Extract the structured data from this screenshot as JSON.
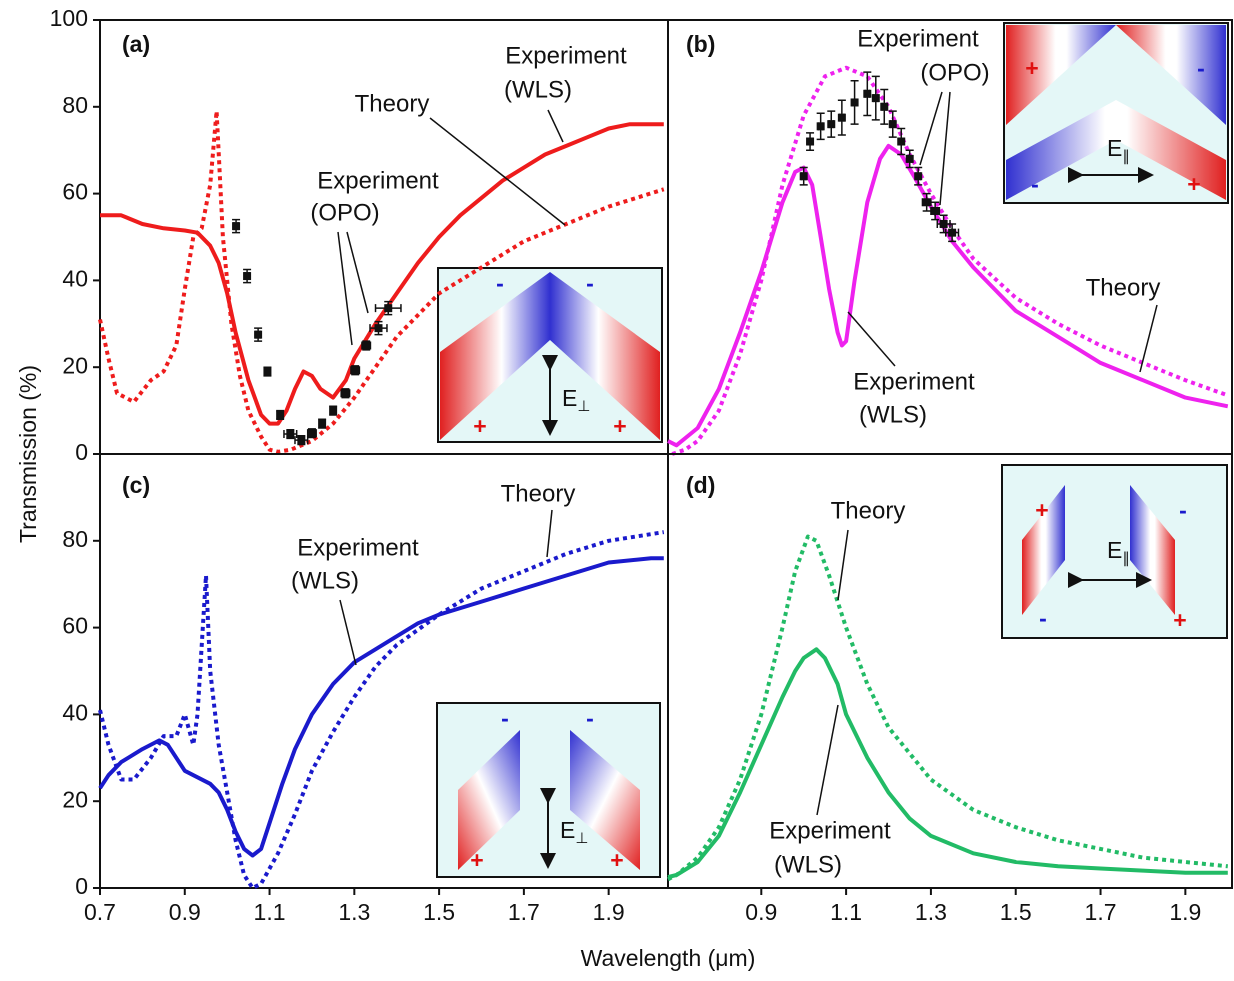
{
  "ylabel": "Transmission (%)",
  "xlabel": "Wavelength (μm)",
  "chart_data": [
    {
      "type": "line",
      "panel_label": "(a)",
      "xlim": [
        0.7,
        2.04
      ],
      "ylim": [
        0,
        100
      ],
      "yticks": [
        0,
        20,
        40,
        60,
        80,
        100
      ],
      "series": [
        {
          "color": "#ee1c1c",
          "dashed": false,
          "x": [
            0.7,
            0.75,
            0.8,
            0.85,
            0.9,
            0.93,
            0.96,
            0.98,
            1.0,
            1.02,
            1.05,
            1.08,
            1.1,
            1.12,
            1.14,
            1.16,
            1.18,
            1.2,
            1.22,
            1.25,
            1.28,
            1.3,
            1.35,
            1.4,
            1.45,
            1.5,
            1.55,
            1.6,
            1.65,
            1.7,
            1.75,
            1.8,
            1.85,
            1.9,
            1.95,
            2.0,
            2.03
          ],
          "values": [
            55,
            55,
            53,
            52,
            51.5,
            51,
            48,
            44,
            37,
            28,
            17,
            9,
            7,
            7,
            10,
            15,
            19,
            18,
            15,
            13,
            17,
            22,
            30,
            37,
            44,
            50,
            55,
            59,
            63,
            66,
            69,
            71,
            73,
            75,
            76,
            76,
            76
          ]
        },
        {
          "color": "#ee1c1c",
          "dashed": true,
          "x": [
            0.7,
            0.72,
            0.74,
            0.78,
            0.82,
            0.85,
            0.88,
            0.9,
            0.92,
            0.94,
            0.96,
            0.975,
            0.99,
            1.01,
            1.03,
            1.05,
            1.08,
            1.1,
            1.12,
            1.15,
            1.2,
            1.25,
            1.3,
            1.35,
            1.4,
            1.45,
            1.5,
            1.6,
            1.7,
            1.8,
            1.9,
            2.03
          ],
          "values": [
            31,
            22,
            14,
            12,
            17,
            19,
            25,
            38,
            50,
            52,
            62,
            79,
            50,
            30,
            18,
            10,
            4,
            1,
            0.5,
            1,
            3,
            7,
            13,
            20,
            27,
            32,
            37,
            43,
            49,
            53,
            57,
            61
          ]
        },
        {
          "type": "scatter",
          "color": "#111111",
          "x": [
            1.021,
            1.047,
            1.073,
            1.095,
            1.125,
            1.149,
            1.175,
            1.2,
            1.224,
            1.25,
            1.279,
            1.302,
            1.328,
            1.357,
            1.38
          ],
          "values": [
            52.5,
            41,
            27.5,
            19,
            9,
            4.6,
            3.2,
            4.8,
            7,
            10,
            14,
            19.3,
            25,
            29,
            33.6
          ],
          "xerr": [
            0.005,
            0.005,
            0.005,
            0.005,
            0.005,
            0.015,
            0.015,
            0.01,
            0.005,
            0.005,
            0.01,
            0.01,
            0.01,
            0.02,
            0.03
          ],
          "yerr": [
            1.5,
            1.5,
            1.5,
            1,
            1,
            1,
            1,
            1,
            1,
            1,
            1,
            1,
            1,
            1.5,
            1.5
          ]
        }
      ],
      "annotations": [
        [
          "Experiment",
          "(WLS)"
        ],
        [
          "Theory"
        ],
        [
          "Experiment",
          "(OPO)"
        ]
      ],
      "inset": {
        "charges": [
          "-",
          "-",
          "+",
          "+"
        ],
        "field": "E",
        "field_sub": "⊥"
      }
    },
    {
      "type": "line",
      "panel_label": "(b)",
      "xlim": [
        0.68,
        2.01
      ],
      "ylim": [
        0,
        100
      ],
      "series": [
        {
          "color": "#ee22ee",
          "dashed": false,
          "x": [
            0.68,
            0.7,
            0.75,
            0.8,
            0.85,
            0.9,
            0.95,
            0.98,
            1.0,
            1.02,
            1.04,
            1.06,
            1.08,
            1.09,
            1.1,
            1.12,
            1.15,
            1.18,
            1.2,
            1.23,
            1.26,
            1.3,
            1.35,
            1.4,
            1.45,
            1.5,
            1.55,
            1.6,
            1.65,
            1.7,
            1.8,
            1.9,
            2.0
          ],
          "values": [
            3,
            2,
            6,
            15,
            28,
            42,
            58,
            65,
            66,
            62,
            50,
            38,
            28,
            25,
            26,
            40,
            58,
            68,
            71,
            69,
            64,
            57,
            49,
            43,
            38,
            33,
            30,
            27,
            24,
            21,
            17,
            13,
            11
          ]
        },
        {
          "color": "#ee22ee",
          "dashed": true,
          "x": [
            0.69,
            0.72,
            0.75,
            0.8,
            0.85,
            0.9,
            0.95,
            1.0,
            1.05,
            1.1,
            1.15,
            1.2,
            1.25,
            1.3,
            1.35,
            1.4,
            1.5,
            1.6,
            1.7,
            1.8,
            1.9,
            2.0
          ],
          "values": [
            0,
            1,
            3,
            10,
            23,
            40,
            62,
            78,
            87,
            89,
            87,
            80,
            69,
            60,
            52,
            45,
            36,
            30,
            25,
            21,
            17,
            13.5
          ]
        },
        {
          "type": "scatter",
          "color": "#111111",
          "x": [
            1.0,
            1.015,
            1.04,
            1.065,
            1.09,
            1.12,
            1.15,
            1.17,
            1.19,
            1.21,
            1.23,
            1.25,
            1.27,
            1.29,
            1.31,
            1.33,
            1.35
          ],
          "values": [
            64,
            72,
            75.5,
            76,
            77.5,
            81,
            83,
            82,
            80,
            76,
            72,
            68,
            64,
            58,
            56,
            53,
            51
          ],
          "xerr": [
            0.005,
            0.005,
            0.005,
            0.005,
            0.005,
            0.005,
            0.005,
            0.005,
            0.005,
            0.005,
            0.005,
            0.005,
            0.005,
            0.01,
            0.01,
            0.015,
            0.015
          ],
          "yerr": [
            2,
            2,
            3,
            3,
            4,
            5,
            5,
            5,
            4,
            3,
            3,
            2,
            2,
            2,
            2,
            2,
            2
          ]
        }
      ],
      "annotations": [
        [
          "Experiment",
          "(OPO)"
        ],
        [
          "Theory"
        ],
        [
          "Experiment",
          "(WLS)"
        ]
      ],
      "inset": {
        "charges": [
          "+",
          "-",
          "-",
          "+"
        ],
        "field": "E",
        "field_sub": "∥"
      }
    },
    {
      "type": "line",
      "panel_label": "(c)",
      "xlim": [
        0.7,
        2.04
      ],
      "ylim": [
        0,
        100
      ],
      "yticks": [
        0,
        20,
        40,
        60,
        80
      ],
      "xticks": [
        0.7,
        0.9,
        1.1,
        1.3,
        1.5,
        1.7,
        1.9
      ],
      "series": [
        {
          "color": "#1a1acc",
          "dashed": false,
          "x": [
            0.7,
            0.72,
            0.75,
            0.8,
            0.84,
            0.86,
            0.88,
            0.9,
            0.93,
            0.96,
            0.98,
            1.0,
            1.02,
            1.04,
            1.06,
            1.08,
            1.1,
            1.13,
            1.16,
            1.2,
            1.25,
            1.3,
            1.35,
            1.4,
            1.45,
            1.5,
            1.6,
            1.7,
            1.8,
            1.9,
            2.0,
            2.03
          ],
          "values": [
            23,
            26,
            29,
            32,
            34,
            33,
            30,
            27,
            25.5,
            24,
            22,
            18,
            13,
            9,
            7.5,
            9,
            15,
            24,
            32,
            40,
            47,
            52,
            55,
            58,
            61,
            63,
            66,
            69,
            72,
            75,
            76,
            76
          ]
        },
        {
          "color": "#1a1acc",
          "dashed": true,
          "x": [
            0.7,
            0.72,
            0.75,
            0.78,
            0.82,
            0.85,
            0.88,
            0.9,
            0.92,
            0.93,
            0.95,
            0.96,
            0.98,
            1.0,
            1.02,
            1.04,
            1.06,
            1.08,
            1.12,
            1.16,
            1.2,
            1.25,
            1.3,
            1.35,
            1.4,
            1.5,
            1.6,
            1.7,
            1.8,
            1.9,
            2.03
          ],
          "values": [
            41,
            33,
            25,
            25,
            30,
            35,
            35,
            40,
            33,
            40,
            72,
            50,
            33,
            22,
            11,
            3,
            0,
            1,
            8,
            17,
            27,
            36,
            44,
            51,
            56,
            63,
            69,
            73,
            77,
            80,
            82
          ]
        }
      ],
      "annotations": [
        [
          "Theory"
        ],
        [
          "Experiment",
          "(WLS)"
        ]
      ],
      "inset": {
        "charges": [
          "-",
          "-",
          "+",
          "+"
        ],
        "field": "E",
        "field_sub": "⊥"
      }
    },
    {
      "type": "line",
      "panel_label": "(d)",
      "xlim": [
        0.68,
        2.01
      ],
      "ylim": [
        0,
        100
      ],
      "xticks": [
        0.9,
        1.1,
        1.3,
        1.5,
        1.7,
        1.9
      ],
      "series": [
        {
          "color": "#22bb66",
          "dashed": false,
          "x": [
            0.68,
            0.7,
            0.75,
            0.8,
            0.85,
            0.9,
            0.95,
            0.98,
            1.0,
            1.03,
            1.05,
            1.08,
            1.1,
            1.15,
            1.2,
            1.25,
            1.3,
            1.4,
            1.5,
            1.6,
            1.7,
            1.8,
            1.9,
            2.0
          ],
          "values": [
            2.5,
            3,
            6,
            12,
            22,
            33,
            44,
            50,
            53,
            55,
            53,
            47,
            40,
            30,
            22,
            16,
            12,
            8,
            6,
            5,
            4.5,
            4,
            3.5,
            3.5
          ]
        },
        {
          "color": "#22bb66",
          "dashed": true,
          "x": [
            0.68,
            0.7,
            0.75,
            0.8,
            0.85,
            0.9,
            0.95,
            0.98,
            1.01,
            1.03,
            1.06,
            1.1,
            1.15,
            1.2,
            1.3,
            1.4,
            1.5,
            1.6,
            1.7,
            1.8,
            1.9,
            2.0
          ],
          "values": [
            2,
            3,
            7,
            14,
            25,
            40,
            60,
            73,
            81,
            80,
            72,
            60,
            47,
            37,
            25,
            18,
            14,
            11,
            9,
            7,
            6,
            5
          ]
        }
      ],
      "annotations": [
        [
          "Theory"
        ],
        [
          "Experiment",
          "(WLS)"
        ]
      ],
      "inset": {
        "charges": [
          "+",
          "-",
          "-",
          "+"
        ],
        "field": "E",
        "field_sub": "∥"
      }
    }
  ]
}
